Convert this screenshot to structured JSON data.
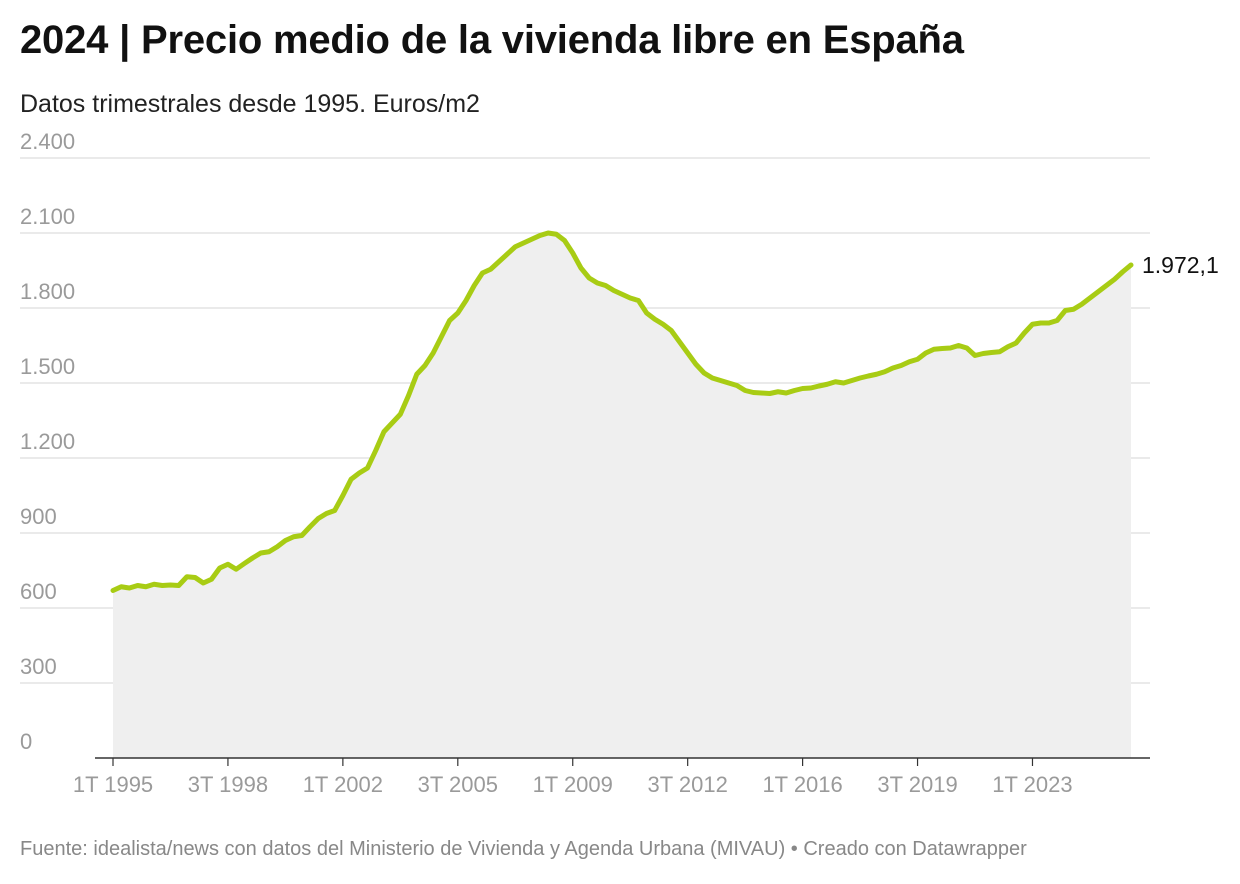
{
  "header": {
    "title": "2024 | Precio medio de la vivienda libre en España",
    "subtitle": "Datos trimestrales desde 1995. Euros/m2"
  },
  "footer": {
    "source": "Fuente: idealista/news con datos del Ministerio de Vivienda y Agenda Urbana (MIVAU) • Creado con Datawrapper"
  },
  "colors": {
    "line": "#a8cc14",
    "area": "#efefef",
    "grid": "#dddddd",
    "axis": "#333333"
  },
  "chart_data": {
    "type": "area",
    "title": "2024 | Precio medio de la vivienda libre en España",
    "subtitle": "Datos trimestrales desde 1995. Euros/m2",
    "xlabel": "",
    "ylabel": "",
    "ylim": [
      0,
      2400
    ],
    "yticks": [
      0,
      300,
      600,
      900,
      1200,
      1500,
      1800,
      2100,
      2400
    ],
    "ytick_labels": [
      "0",
      "300",
      "600",
      "900",
      "1.200",
      "1.500",
      "1.800",
      "2.100",
      "2.400"
    ],
    "xticks": [
      {
        "index": 0,
        "label": "1T 1995"
      },
      {
        "index": 14,
        "label": "3T 1998"
      },
      {
        "index": 28,
        "label": "1T 2002"
      },
      {
        "index": 42,
        "label": "3T 2005"
      },
      {
        "index": 56,
        "label": "1T 2009"
      },
      {
        "index": 70,
        "label": "3T 2012"
      },
      {
        "index": 84,
        "label": "1T 2016"
      },
      {
        "index": 98,
        "label": "3T 2019"
      },
      {
        "index": 112,
        "label": "1T 2023"
      }
    ],
    "grid": true,
    "end_label": "1.972,1",
    "series": [
      {
        "values": [
          670,
          685,
          680,
          690,
          685,
          695,
          690,
          692,
          690,
          725,
          722,
          700,
          715,
          760,
          775,
          755,
          778,
          800,
          820,
          825,
          845,
          870,
          885,
          890,
          925,
          958,
          978,
          990,
          1050,
          1115,
          1140,
          1160,
          1230,
          1305,
          1340,
          1375,
          1450,
          1535,
          1570,
          1620,
          1685,
          1750,
          1780,
          1830,
          1890,
          1940,
          1955,
          1985,
          2015,
          2045,
          2060,
          2075,
          2090,
          2100,
          2095,
          2070,
          2020,
          1960,
          1920,
          1900,
          1890,
          1870,
          1855,
          1840,
          1830,
          1780,
          1755,
          1735,
          1710,
          1665,
          1620,
          1575,
          1540,
          1520,
          1510,
          1500,
          1490,
          1470,
          1462,
          1460,
          1458,
          1465,
          1460,
          1470,
          1478,
          1480,
          1488,
          1495,
          1505,
          1500,
          1510,
          1520,
          1528,
          1535,
          1545,
          1560,
          1570,
          1585,
          1595,
          1620,
          1635,
          1638,
          1640,
          1650,
          1640,
          1610,
          1618,
          1622,
          1625,
          1645,
          1660,
          1700,
          1735,
          1740,
          1740,
          1750,
          1790,
          1795,
          1815,
          1840,
          1865,
          1890,
          1915,
          1945,
          1972.1
        ]
      }
    ]
  }
}
